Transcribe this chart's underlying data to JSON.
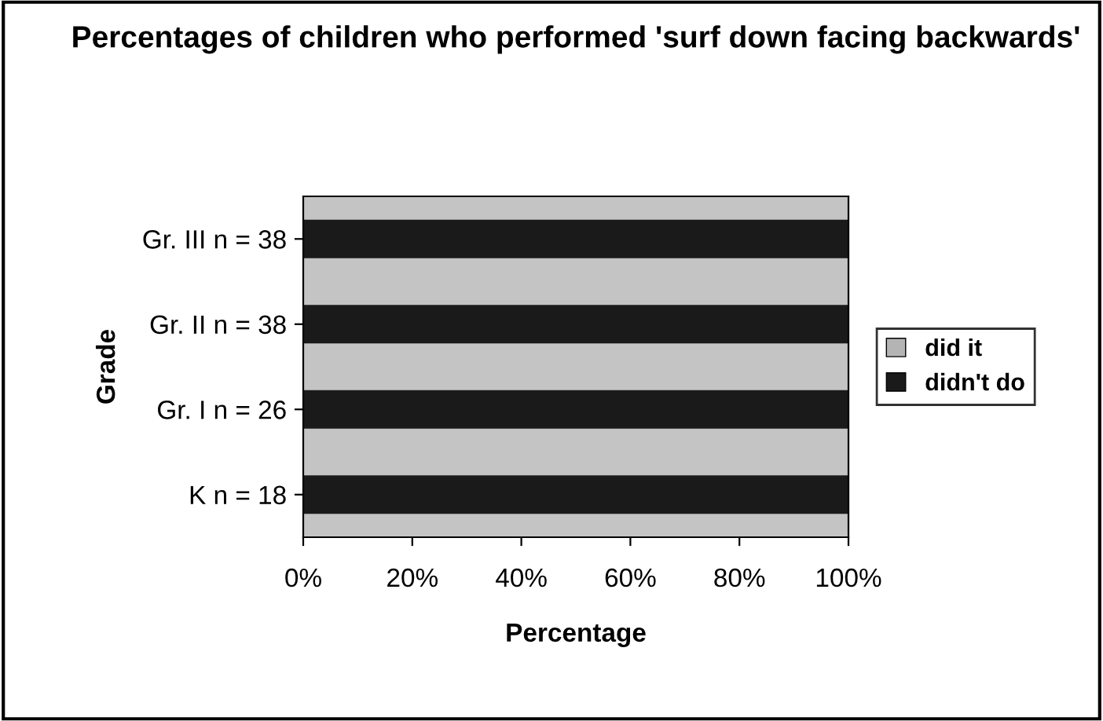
{
  "chart_data": {
    "type": "bar",
    "orientation": "horizontal",
    "stacked": true,
    "title": "Percentages of children who performed 'surf down facing backwards'",
    "xlabel": "Percentage",
    "ylabel": "Grade",
    "categories": [
      "Gr. III n = 38",
      "Gr. II n = 38",
      "Gr. I n = 26",
      "K n = 18"
    ],
    "series": [
      {
        "name": "did it",
        "color": "#b4b4b4",
        "values": [
          0,
          0,
          0,
          0
        ]
      },
      {
        "name": "didn't do",
        "color": "#1a1a1a",
        "values": [
          100,
          100,
          100,
          100
        ]
      }
    ],
    "xlim": [
      0,
      100
    ],
    "xticks": [
      {
        "value": 0,
        "label": "0%"
      },
      {
        "value": 20,
        "label": "20%"
      },
      {
        "value": 40,
        "label": "40%"
      },
      {
        "value": 60,
        "label": "60%"
      },
      {
        "value": 80,
        "label": "80%"
      },
      {
        "value": 100,
        "label": "100%"
      }
    ],
    "grid": false,
    "legend": "right"
  }
}
